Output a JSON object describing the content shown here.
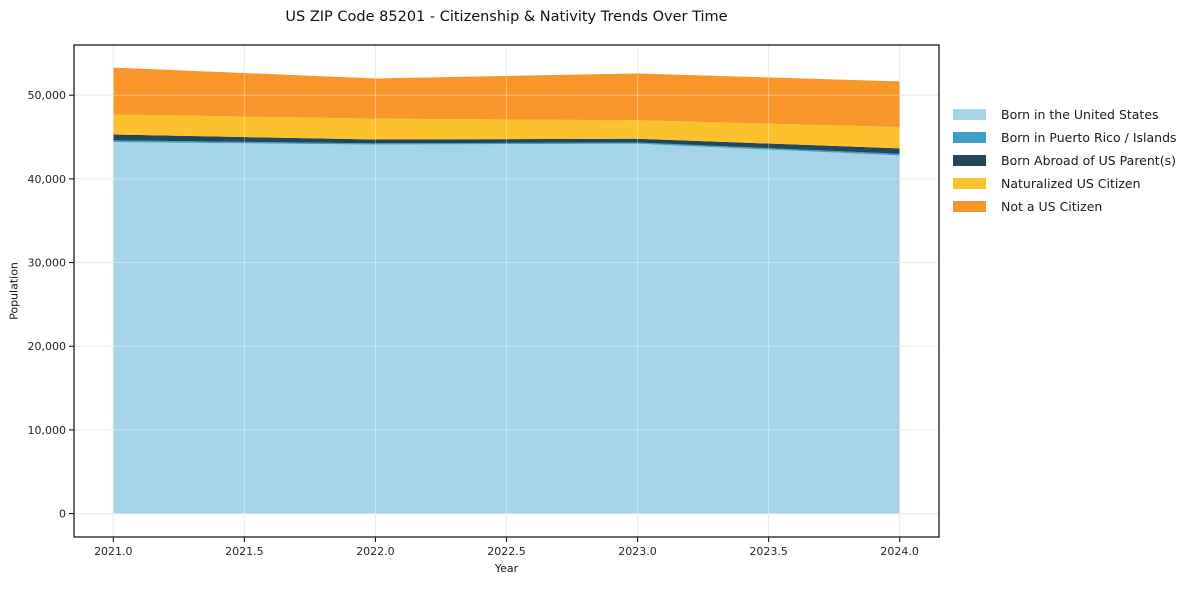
{
  "chart_data": {
    "type": "area",
    "stacked": true,
    "title": "US ZIP Code 85201 - Citizenship & Nativity Trends Over Time",
    "xlabel": "Year",
    "ylabel": "Population",
    "x": [
      2021,
      2022,
      2023,
      2024
    ],
    "series": [
      {
        "name": "Born in the United States",
        "color": "#a5d3e8",
        "values": [
          44400,
          44100,
          44200,
          42800
        ]
      },
      {
        "name": "Born in Puerto Rico / Islands",
        "color": "#3f9fc4",
        "values": [
          200,
          150,
          150,
          200
        ]
      },
      {
        "name": "Born Abroad of US Parent(s)",
        "color": "#23465a",
        "values": [
          700,
          450,
          450,
          650
        ]
      },
      {
        "name": "Naturalized US Citizen",
        "color": "#fcc22d",
        "values": [
          2400,
          2500,
          2200,
          2550
        ]
      },
      {
        "name": "Not a US Citizen",
        "color": "#f8962a",
        "values": [
          5600,
          4800,
          5600,
          5450
        ]
      }
    ],
    "totals": [
      53300,
      52000,
      52600,
      51650
    ],
    "xlim": [
      2020.85,
      2024.15
    ],
    "ylim": [
      -2800,
      56000
    ],
    "xticks": {
      "values": [
        2021.0,
        2021.5,
        2022.0,
        2022.5,
        2023.0,
        2023.5,
        2024.0
      ],
      "labels": [
        "2021.0",
        "2021.5",
        "2022.0",
        "2022.5",
        "2023.0",
        "2023.5",
        "2024.0"
      ]
    },
    "yticks": {
      "values": [
        0,
        10000,
        20000,
        30000,
        40000,
        50000
      ],
      "labels": [
        "0",
        "10,000",
        "20,000",
        "30,000",
        "40,000",
        "50,000"
      ]
    },
    "grid": true,
    "legend_position": "right",
    "colors": {
      "axis": "#1a1a1a",
      "grid": "#e0e0e0",
      "tick_label": "#262626",
      "background": "#ffffff"
    }
  }
}
